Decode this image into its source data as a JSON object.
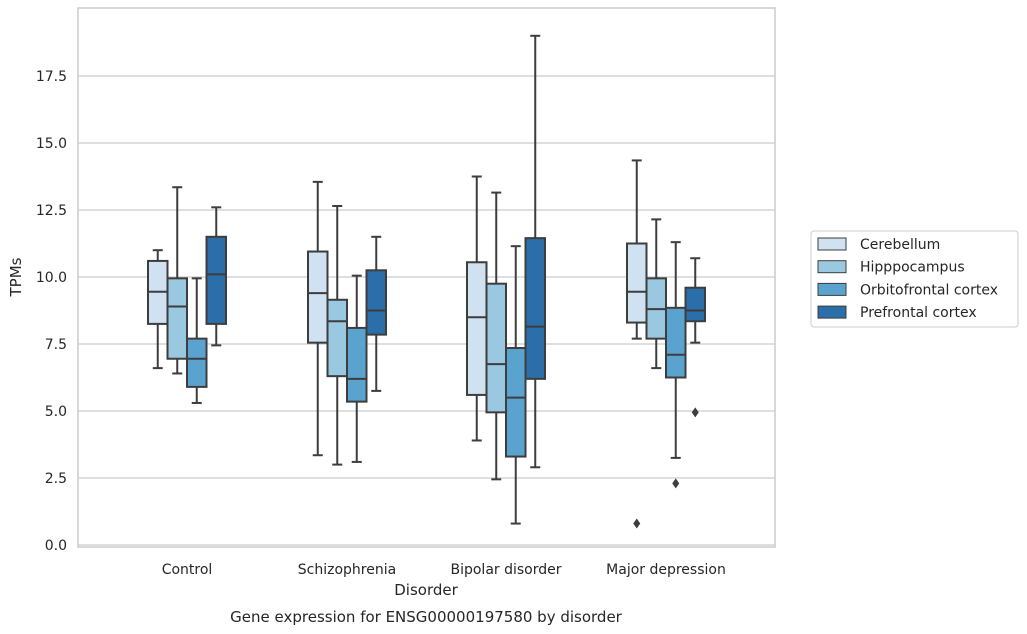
{
  "chart_data": {
    "type": "boxplot",
    "title": "",
    "caption": "Gene expression for ENSG00000197580 by disorder",
    "xlabel": "Disorder",
    "ylabel": "TPMs",
    "ylim": [
      -0.1,
      19.8
    ],
    "yticks": [
      0.0,
      2.5,
      5.0,
      7.5,
      10.0,
      12.5,
      15.0,
      17.5
    ],
    "ytick_labels": [
      "0.0",
      "2.5",
      "5.0",
      "7.5",
      "10.0",
      "12.5",
      "15.0",
      "17.5"
    ],
    "grid": "horizontal",
    "legend_position": "right",
    "categories": [
      "Control",
      "Schizophrenia",
      "Bipolar disorder",
      "Major depression"
    ],
    "series": [
      {
        "name": "Cerebellum",
        "color": "#d0e1f2",
        "boxes": [
          {
            "whisker_low": 6.6,
            "q1": 8.25,
            "median": 9.45,
            "q3": 10.6,
            "whisker_high": 11.0,
            "outliers": []
          },
          {
            "whisker_low": 3.35,
            "q1": 7.55,
            "median": 9.4,
            "q3": 10.95,
            "whisker_high": 13.55,
            "outliers": []
          },
          {
            "whisker_low": 3.9,
            "q1": 5.6,
            "median": 8.5,
            "q3": 10.55,
            "whisker_high": 13.75,
            "outliers": []
          },
          {
            "whisker_low": 7.7,
            "q1": 8.3,
            "median": 9.45,
            "q3": 11.25,
            "whisker_high": 14.35,
            "outliers": [
              0.8
            ]
          }
        ]
      },
      {
        "name": "Hipppocampus",
        "color": "#9ac8e0",
        "boxes": [
          {
            "whisker_low": 6.4,
            "q1": 6.95,
            "median": 8.9,
            "q3": 9.95,
            "whisker_high": 13.35,
            "outliers": []
          },
          {
            "whisker_low": 3.0,
            "q1": 6.3,
            "median": 8.35,
            "q3": 9.15,
            "whisker_high": 12.65,
            "outliers": []
          },
          {
            "whisker_low": 2.45,
            "q1": 4.95,
            "median": 6.75,
            "q3": 9.75,
            "whisker_high": 13.15,
            "outliers": []
          },
          {
            "whisker_low": 6.6,
            "q1": 7.7,
            "median": 8.8,
            "q3": 9.95,
            "whisker_high": 12.15,
            "outliers": []
          }
        ]
      },
      {
        "name": "Orbitofrontal cortex",
        "color": "#5ba3cf",
        "boxes": [
          {
            "whisker_low": 5.3,
            "q1": 5.9,
            "median": 6.95,
            "q3": 7.7,
            "whisker_high": 9.95,
            "outliers": []
          },
          {
            "whisker_low": 3.1,
            "q1": 5.35,
            "median": 6.2,
            "q3": 8.1,
            "whisker_high": 10.05,
            "outliers": []
          },
          {
            "whisker_low": 0.8,
            "q1": 3.3,
            "median": 5.5,
            "q3": 7.35,
            "whisker_high": 11.15,
            "outliers": []
          },
          {
            "whisker_low": 3.25,
            "q1": 6.25,
            "median": 7.1,
            "q3": 8.85,
            "whisker_high": 11.3,
            "outliers": [
              2.3
            ]
          }
        ]
      },
      {
        "name": "Prefrontal cortex",
        "color": "#2b6eaa",
        "boxes": [
          {
            "whisker_low": 7.45,
            "q1": 8.25,
            "median": 10.1,
            "q3": 11.5,
            "whisker_high": 12.6,
            "outliers": []
          },
          {
            "whisker_low": 5.75,
            "q1": 7.85,
            "median": 8.75,
            "q3": 10.25,
            "whisker_high": 11.5,
            "outliers": []
          },
          {
            "whisker_low": 2.9,
            "q1": 6.2,
            "median": 8.15,
            "q3": 11.45,
            "whisker_high": 19.0,
            "outliers": []
          },
          {
            "whisker_low": 7.55,
            "q1": 8.35,
            "median": 8.75,
            "q3": 9.6,
            "whisker_high": 10.7,
            "outliers": [
              4.95
            ]
          }
        ]
      }
    ]
  }
}
